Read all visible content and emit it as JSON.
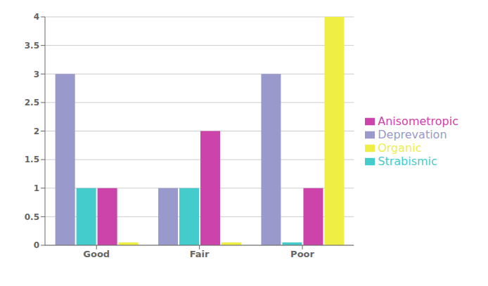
{
  "chart_data": {
    "type": "bar",
    "categories": [
      "Good",
      "Fair",
      "Poor"
    ],
    "series": [
      {
        "name": "Deprevation",
        "color": "#9999cc",
        "values": [
          3,
          1,
          3
        ]
      },
      {
        "name": "Strabismic",
        "color": "#44cccc",
        "values": [
          1,
          1,
          0.05
        ]
      },
      {
        "name": "Anisometropic",
        "color": "#cc44aa",
        "values": [
          1,
          2,
          1
        ]
      },
      {
        "name": "Organic",
        "color": "#eeee44",
        "values": [
          0.05,
          0.05,
          4
        ]
      }
    ],
    "ylim": [
      0,
      4
    ],
    "yticks": [
      0,
      0.5,
      1,
      1.5,
      2,
      2.5,
      3,
      3.5,
      4
    ],
    "grid": true,
    "legend": "right"
  }
}
